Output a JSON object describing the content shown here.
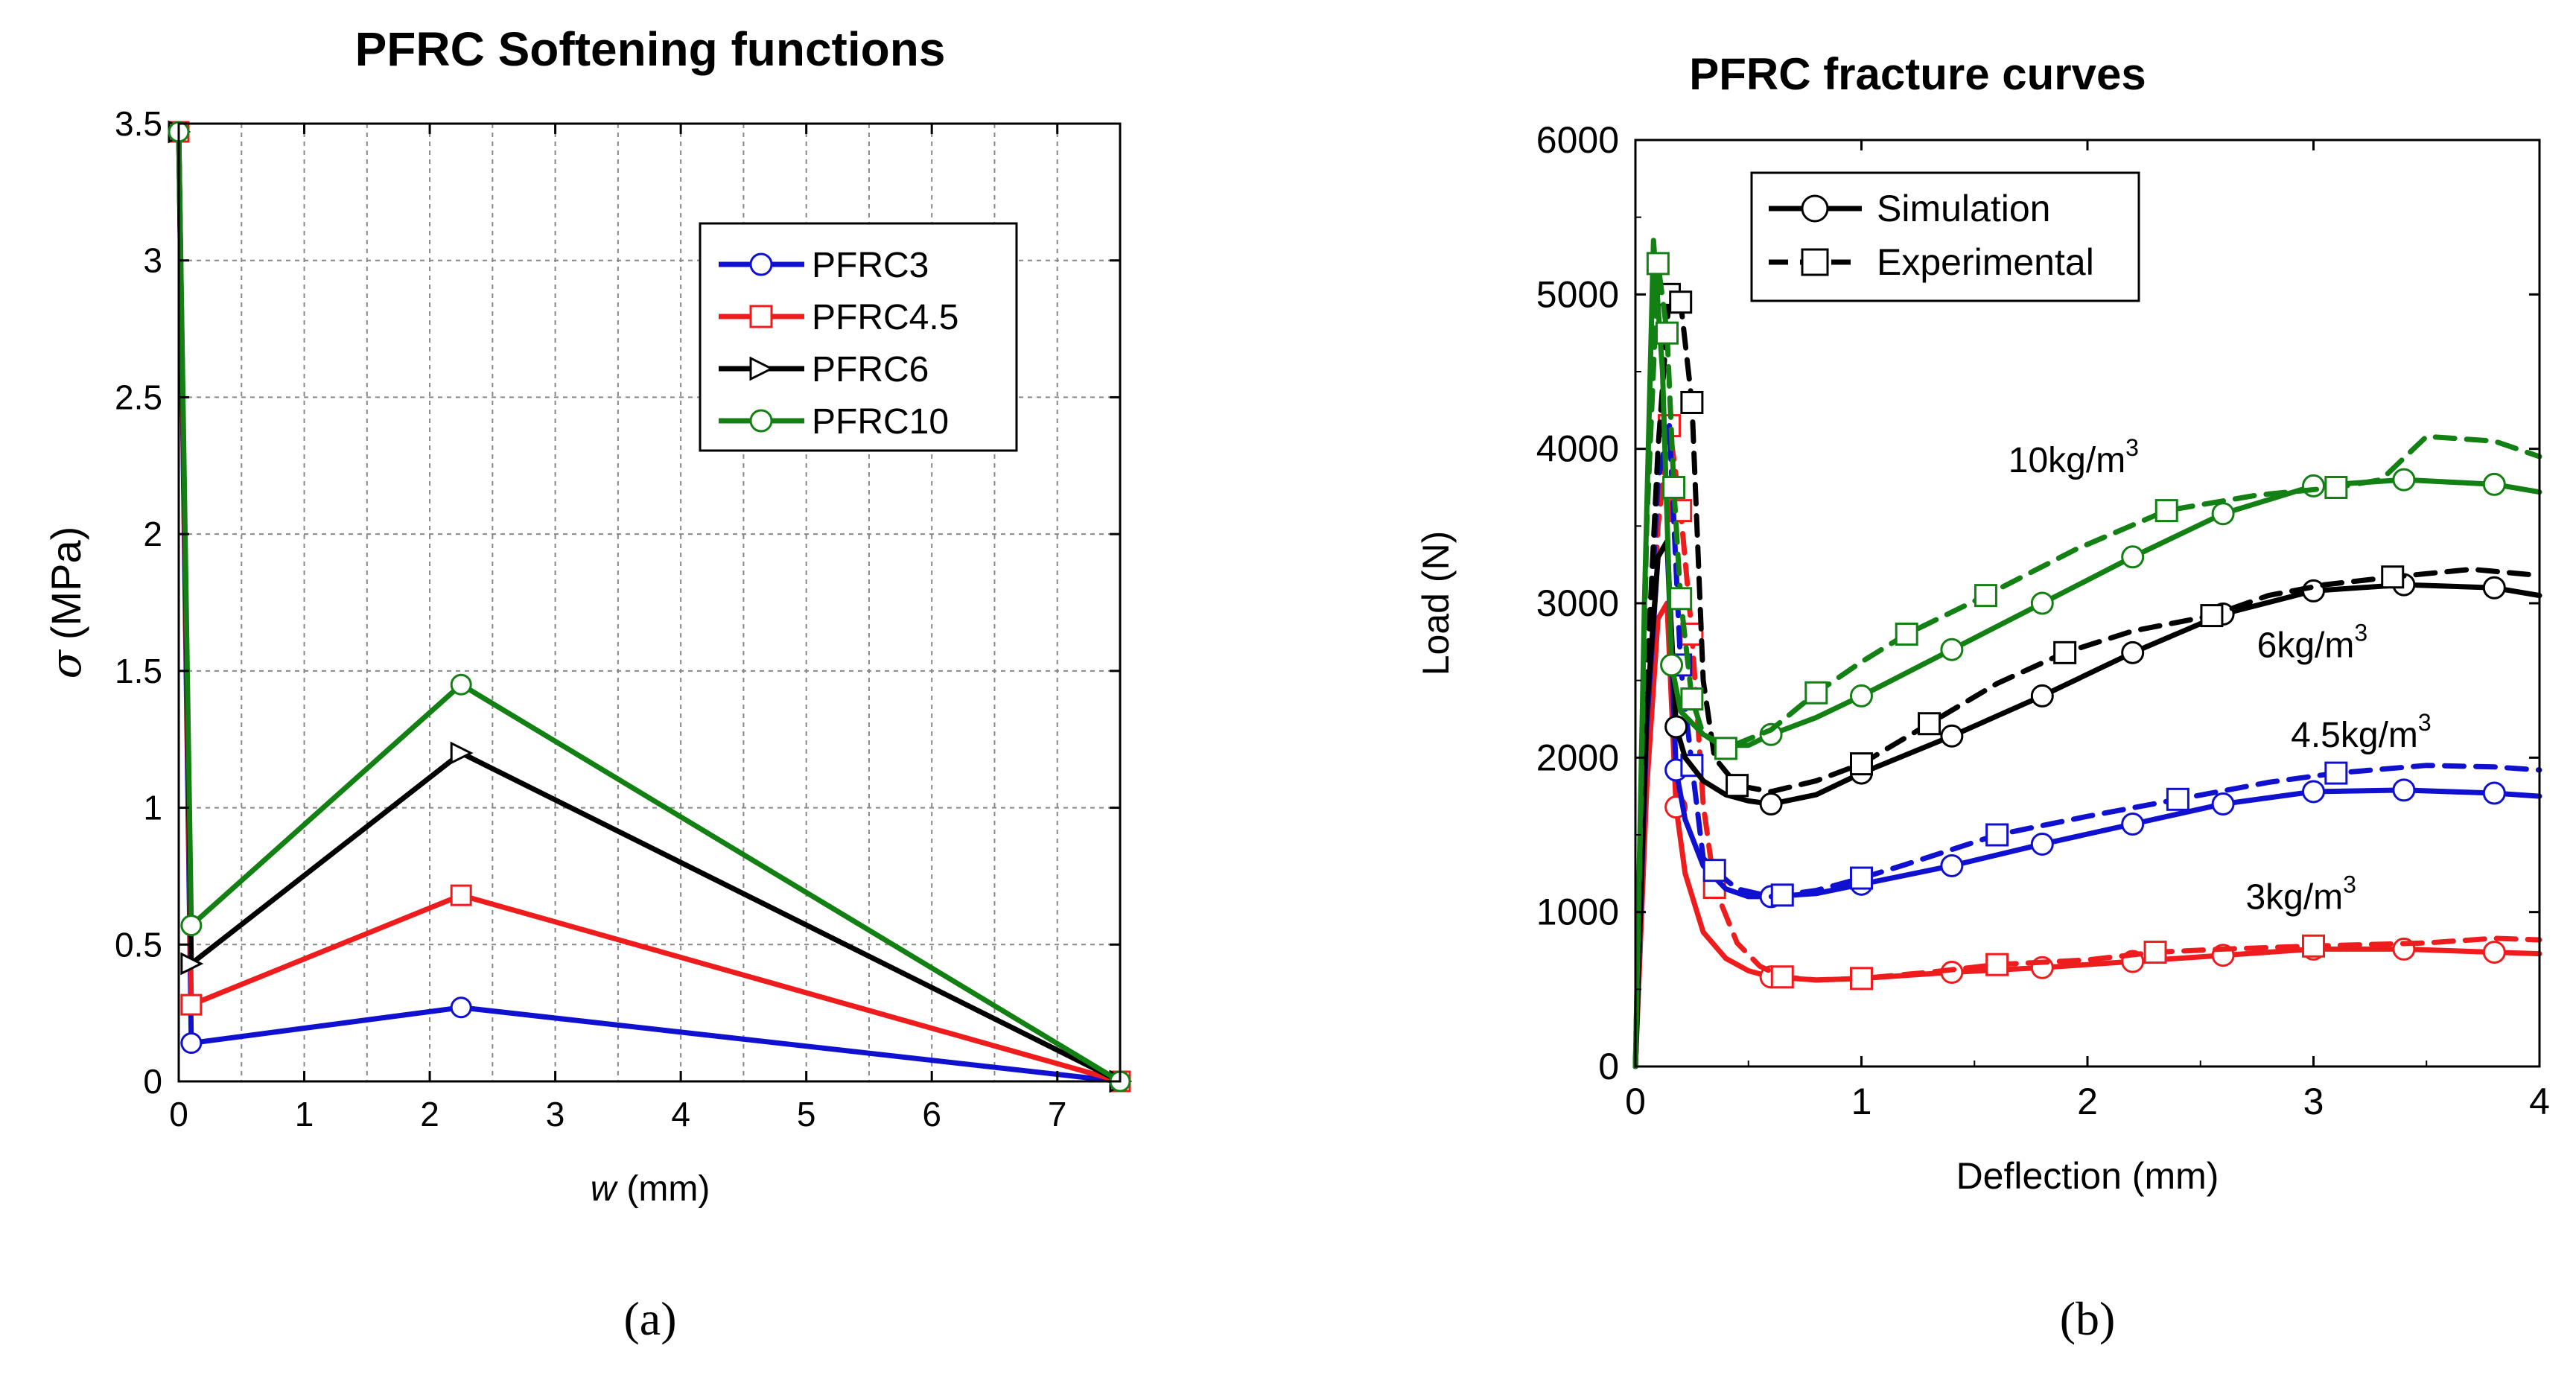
{
  "figure": {
    "panel_labels": [
      "(a)",
      "(b)"
    ]
  },
  "chart_data": [
    {
      "type": "line",
      "title": "PFRC Softening functions",
      "xlabel_var": "w",
      "xlabel_unit": "(mm)",
      "ylabel_var": "σ",
      "ylabel_unit": "(MPa)",
      "xlim": [
        0,
        7.5
      ],
      "ylim": [
        0,
        3.5
      ],
      "xticks": [
        0,
        1,
        2,
        3,
        4,
        5,
        6,
        7
      ],
      "yticks": [
        0,
        0.5,
        1,
        1.5,
        2,
        2.5,
        3,
        3.5
      ],
      "ytick_labels": [
        "0",
        "0.5",
        "1",
        "1.5",
        "2",
        "2.5",
        "3",
        "3.5"
      ],
      "grid": true,
      "legend_position": "top-right",
      "series": [
        {
          "name": "PFRC3",
          "color": "#1010d0",
          "marker": "circle",
          "x": [
            0,
            0.1,
            2.25,
            7.5
          ],
          "y": [
            3.47,
            0.14,
            0.27,
            0
          ]
        },
        {
          "name": "PFRC4.5",
          "color": "#ee1c1c",
          "marker": "square",
          "x": [
            0,
            0.1,
            2.25,
            7.5
          ],
          "y": [
            3.47,
            0.28,
            0.68,
            0
          ]
        },
        {
          "name": "PFRC6",
          "color": "#000000",
          "marker": "triangle-right",
          "x": [
            0,
            0.1,
            2.25,
            7.5
          ],
          "y": [
            3.47,
            0.43,
            1.2,
            0
          ]
        },
        {
          "name": "PFRC10",
          "color": "#138013",
          "marker": "circle",
          "x": [
            0,
            0.1,
            2.25,
            7.5
          ],
          "y": [
            3.47,
            0.57,
            1.45,
            0
          ]
        }
      ]
    },
    {
      "type": "line",
      "title": "PFRC fracture curves",
      "xlabel": "Deflection (mm)",
      "ylabel": "Load (N)",
      "xlim": [
        0,
        4
      ],
      "ylim": [
        0,
        6000
      ],
      "xticks": [
        0,
        1,
        2,
        3,
        4
      ],
      "yticks": [
        0,
        1000,
        2000,
        3000,
        4000,
        5000,
        6000
      ],
      "grid": false,
      "legend_position": "top-left",
      "legend": [
        {
          "name": "Simulation",
          "marker": "circle",
          "dash": false
        },
        {
          "name": "Experimental",
          "marker": "square",
          "dash": true
        }
      ],
      "annotations": [
        {
          "base": "10kg/m",
          "sup": "3",
          "color": "#138013",
          "x": 1.65,
          "y": 3850
        },
        {
          "base": "6kg/m",
          "sup": "3",
          "color": "#000000",
          "x": 2.75,
          "y": 2650
        },
        {
          "base": "4.5kg/m",
          "sup": "3",
          "color": "#1010d0",
          "x": 2.9,
          "y": 2070
        },
        {
          "base": "3kg/m",
          "sup": "3",
          "color": "#ee1c1c",
          "x": 2.7,
          "y": 1020
        }
      ],
      "series": [
        {
          "group": "3kg/m3",
          "kind": "Simulation",
          "color": "#ee1c1c",
          "dash": false,
          "marker": "circle",
          "x": [
            0,
            0.05,
            0.1,
            0.14,
            0.18,
            0.22,
            0.3,
            0.4,
            0.5,
            0.6,
            0.8,
            1.0,
            1.4,
            1.8,
            2.2,
            2.6,
            3.0,
            3.4,
            3.8,
            4.0
          ],
          "y": [
            0,
            1800,
            2900,
            3000,
            1680,
            1250,
            870,
            700,
            620,
            580,
            560,
            570,
            610,
            640,
            680,
            720,
            760,
            760,
            740,
            730
          ],
          "marker_x": [
            0.18,
            0.6,
            1.0,
            1.4,
            1.8,
            2.2,
            2.6,
            3.0,
            3.4,
            3.8
          ]
        },
        {
          "group": "3kg/m3",
          "kind": "Experimental",
          "color": "#ee1c1c",
          "dash": true,
          "marker": "square",
          "x": [
            0,
            0.05,
            0.1,
            0.15,
            0.2,
            0.25,
            0.3,
            0.35,
            0.45,
            0.55,
            0.65,
            0.8,
            1.0,
            1.3,
            1.6,
            2.0,
            2.3,
            2.6,
            3.0,
            3.5,
            3.8,
            4.0
          ],
          "y": [
            0,
            2000,
            3500,
            4150,
            3600,
            2800,
            1700,
            1160,
            800,
            650,
            580,
            560,
            570,
            610,
            660,
            690,
            740,
            760,
            780,
            800,
            830,
            820
          ],
          "marker_x": [
            0.15,
            0.2,
            0.25,
            0.35,
            0.65,
            1.0,
            1.6,
            2.3,
            3.0
          ]
        },
        {
          "group": "4.5kg/m3",
          "kind": "Simulation",
          "color": "#1010d0",
          "dash": false,
          "marker": "circle",
          "x": [
            0,
            0.05,
            0.1,
            0.14,
            0.18,
            0.22,
            0.3,
            0.4,
            0.5,
            0.6,
            0.8,
            1.0,
            1.4,
            1.8,
            2.2,
            2.6,
            3.0,
            3.4,
            3.8,
            4.0
          ],
          "y": [
            0,
            2200,
            3300,
            3400,
            1920,
            1600,
            1300,
            1150,
            1100,
            1100,
            1120,
            1180,
            1300,
            1440,
            1570,
            1700,
            1780,
            1790,
            1770,
            1750
          ],
          "marker_x": [
            0.18,
            0.6,
            1.0,
            1.4,
            1.8,
            2.2,
            2.6,
            3.0,
            3.4,
            3.8
          ]
        },
        {
          "group": "4.5kg/m3",
          "kind": "Experimental",
          "color": "#1010d0",
          "dash": true,
          "marker": "square",
          "x": [
            0,
            0.05,
            0.1,
            0.15,
            0.2,
            0.25,
            0.3,
            0.35,
            0.45,
            0.6,
            0.8,
            1.0,
            1.2,
            1.6,
            2.0,
            2.4,
            2.8,
            3.1,
            3.5,
            3.8,
            4.0
          ],
          "y": [
            0,
            2400,
            3800,
            4150,
            2600,
            1950,
            1350,
            1270,
            1150,
            1100,
            1140,
            1220,
            1310,
            1500,
            1620,
            1730,
            1840,
            1900,
            1950,
            1940,
            1920
          ],
          "marker_x": [
            0.2,
            0.25,
            0.35,
            0.65,
            1.0,
            1.6,
            2.4,
            3.1
          ]
        },
        {
          "group": "6kg/m3",
          "kind": "Simulation",
          "color": "#000000",
          "dash": false,
          "marker": "circle",
          "x": [
            0,
            0.05,
            0.1,
            0.14,
            0.18,
            0.22,
            0.3,
            0.4,
            0.5,
            0.6,
            0.8,
            1.0,
            1.4,
            1.8,
            2.2,
            2.6,
            3.0,
            3.4,
            3.8,
            4.0
          ],
          "y": [
            0,
            2300,
            3300,
            3400,
            2200,
            2000,
            1850,
            1760,
            1720,
            1700,
            1760,
            1900,
            2140,
            2400,
            2680,
            2930,
            3080,
            3120,
            3100,
            3050
          ],
          "marker_x": [
            0.18,
            0.6,
            1.0,
            1.4,
            1.8,
            2.2,
            2.6,
            3.0,
            3.4,
            3.8
          ]
        },
        {
          "group": "6kg/m3",
          "kind": "Experimental",
          "color": "#000000",
          "dash": true,
          "marker": "square",
          "x": [
            0,
            0.05,
            0.1,
            0.15,
            0.2,
            0.25,
            0.3,
            0.35,
            0.45,
            0.6,
            0.8,
            1.0,
            1.3,
            1.6,
            1.9,
            2.2,
            2.55,
            2.8,
            3.05,
            3.35,
            3.7,
            4.0
          ],
          "y": [
            0,
            2500,
            4000,
            5000,
            4950,
            4300,
            2500,
            2000,
            1820,
            1780,
            1850,
            1960,
            2220,
            2480,
            2680,
            2820,
            2920,
            3050,
            3120,
            3170,
            3220,
            3180
          ],
          "marker_x": [
            0.15,
            0.2,
            0.25,
            0.45,
            1.0,
            1.3,
            1.9,
            2.55,
            3.35
          ]
        },
        {
          "group": "10kg/m3",
          "kind": "Simulation",
          "color": "#138013",
          "dash": false,
          "marker": "circle",
          "x": [
            0,
            0.04,
            0.08,
            0.12,
            0.16,
            0.2,
            0.3,
            0.4,
            0.5,
            0.6,
            0.8,
            1.0,
            1.4,
            1.8,
            2.2,
            2.6,
            3.0,
            3.4,
            3.8,
            4.0
          ],
          "y": [
            0,
            3000,
            5350,
            4500,
            2600,
            2300,
            2150,
            2080,
            2080,
            2150,
            2260,
            2400,
            2700,
            3000,
            3300,
            3580,
            3760,
            3800,
            3770,
            3720
          ],
          "marker_x": [
            0.16,
            0.6,
            1.0,
            1.4,
            1.8,
            2.2,
            2.6,
            3.0,
            3.4,
            3.8
          ]
        },
        {
          "group": "10kg/m3",
          "kind": "Experimental",
          "color": "#138013",
          "dash": true,
          "marker": "square",
          "x": [
            0,
            0.05,
            0.1,
            0.14,
            0.17,
            0.2,
            0.25,
            0.3,
            0.4,
            0.6,
            0.8,
            1.0,
            1.2,
            1.55,
            1.95,
            2.35,
            2.75,
            3.1,
            3.3,
            3.5,
            3.8,
            4.0
          ],
          "y": [
            0,
            3500,
            5200,
            4750,
            3750,
            3030,
            2380,
            2150,
            2060,
            2180,
            2420,
            2620,
            2800,
            3050,
            3350,
            3600,
            3700,
            3750,
            3800,
            4080,
            4050,
            3950
          ],
          "marker_x": [
            0.1,
            0.14,
            0.17,
            0.2,
            0.25,
            0.4,
            0.8,
            1.2,
            1.55,
            2.35,
            3.1
          ]
        }
      ]
    }
  ]
}
